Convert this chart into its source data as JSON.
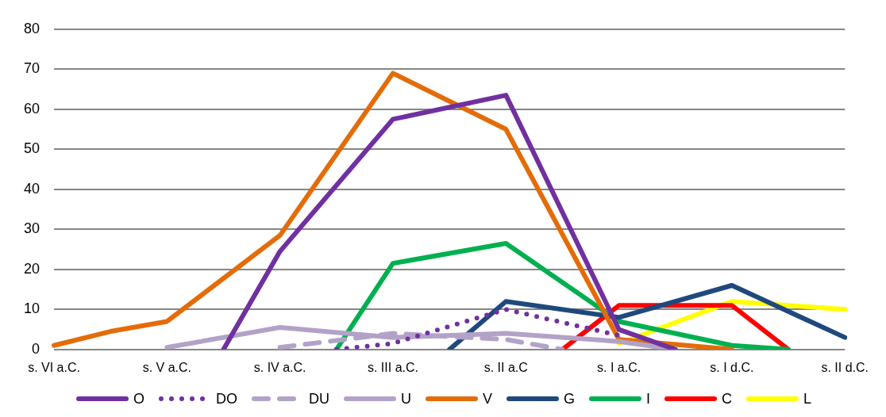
{
  "chart_data": {
    "type": "line",
    "categories": [
      "s. VI a.C.",
      null,
      "s. V a.C.",
      null,
      "s. IV a.C.",
      null,
      "s. III a.C.",
      null,
      "s. II a.C",
      null,
      "s. I a.C.",
      null,
      "s. I d.C.",
      null,
      "s. II d.C."
    ],
    "series": [
      {
        "name": "O",
        "color": "#7030a0",
        "line_style": "solid",
        "values": [
          null,
          null,
          null,
          0,
          24.5,
          null,
          57.5,
          null,
          63.5,
          null,
          5,
          0,
          null,
          null,
          null
        ]
      },
      {
        "name": "DO",
        "color": "#7030a0",
        "line_style": "dotted",
        "values": [
          null,
          null,
          null,
          null,
          null,
          0,
          1.5,
          null,
          10,
          null,
          3.5,
          null,
          null,
          null,
          null
        ]
      },
      {
        "name": "DU",
        "color": "#b3a2c7",
        "line_style": "dashed",
        "values": [
          null,
          null,
          null,
          null,
          0.5,
          null,
          4,
          null,
          2.5,
          0,
          null,
          null,
          null,
          null,
          null
        ]
      },
      {
        "name": "U",
        "color": "#b3a2c7",
        "line_style": "solid",
        "values": [
          null,
          null,
          0.5,
          null,
          5.5,
          null,
          3,
          null,
          4,
          null,
          2,
          0,
          null,
          null,
          null
        ]
      },
      {
        "name": "V",
        "color": "#e36c09",
        "line_style": "solid",
        "values": [
          1,
          4.5,
          7,
          null,
          28.5,
          null,
          69,
          null,
          55,
          null,
          2.5,
          null,
          0,
          null,
          null
        ]
      },
      {
        "name": "G",
        "color": "#1f497d",
        "line_style": "solid",
        "values": [
          null,
          null,
          null,
          null,
          null,
          null,
          null,
          0,
          12,
          null,
          8,
          null,
          16,
          null,
          3
        ]
      },
      {
        "name": "I",
        "color": "#00b050",
        "line_style": "solid",
        "values": [
          null,
          null,
          null,
          null,
          null,
          0,
          21.5,
          null,
          26.5,
          null,
          7,
          null,
          1,
          0,
          null
        ]
      },
      {
        "name": "C",
        "color": "#ff0000",
        "line_style": "solid",
        "values": [
          null,
          null,
          null,
          null,
          null,
          null,
          null,
          null,
          null,
          0,
          11,
          null,
          11,
          0,
          null
        ]
      },
      {
        "name": "L",
        "color": "#ffff00",
        "line_style": "solid",
        "values": [
          null,
          null,
          null,
          null,
          null,
          null,
          null,
          null,
          null,
          null,
          1.5,
          null,
          12,
          null,
          10
        ]
      }
    ],
    "ylim": [
      0,
      80
    ],
    "yticks": [
      0,
      10,
      20,
      30,
      40,
      50,
      60,
      70,
      80
    ],
    "grid": "y",
    "legend": "bottom",
    "marker": "none"
  }
}
